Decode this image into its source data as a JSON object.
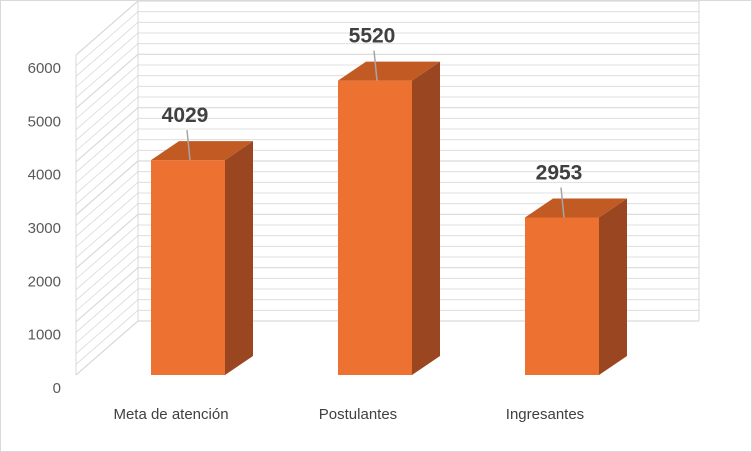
{
  "chart_data": {
    "type": "bar",
    "style": "3d-column",
    "categories": [
      "Meta de atención",
      "Postulantes",
      "Ingresantes"
    ],
    "values": [
      4029,
      5520,
      2953
    ],
    "data_labels": [
      "4029",
      "5520",
      "2953"
    ],
    "yticks": [
      "0",
      "1000",
      "2000",
      "3000",
      "4000",
      "5000",
      "6000"
    ],
    "ylim": [
      0,
      6000
    ],
    "gridlines": true,
    "legend": "none",
    "colors": {
      "front": "#ED7231",
      "side": "#9A4620",
      "top": "#C15A23",
      "grid": "#d9d9d9",
      "leader": "#a6a6a6"
    }
  }
}
